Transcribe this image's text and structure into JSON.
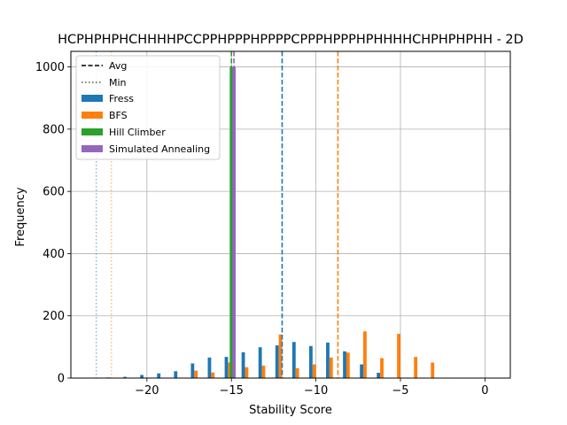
{
  "chart_data": {
    "type": "bar",
    "title": "HCPHPHPHCHHHHPCCPPHPPPHPPPPCPPPHPPPHPHHHHCHPHPHPHH - 2D",
    "xlabel": "Stability Score",
    "ylabel": "Frequency",
    "xlim": [
      -24.5,
      1.5
    ],
    "ylim": [
      0,
      1050
    ],
    "xticks": [
      -20,
      -15,
      -10,
      -5,
      0
    ],
    "xtick_labels": [
      "−20",
      "−15",
      "−10",
      "−5",
      "0"
    ],
    "yticks": [
      0,
      200,
      400,
      600,
      800,
      1000
    ],
    "grid": true,
    "legend_position": "top-left",
    "series": [
      {
        "name": "Fress",
        "color": "#1f77b4",
        "avg": -12,
        "min": -23,
        "bars": [
          {
            "x": -22.3,
            "y": 2
          },
          {
            "x": -21.3,
            "y": 4
          },
          {
            "x": -20.3,
            "y": 10
          },
          {
            "x": -19.3,
            "y": 15
          },
          {
            "x": -18.3,
            "y": 22
          },
          {
            "x": -17.3,
            "y": 47
          },
          {
            "x": -16.3,
            "y": 66
          },
          {
            "x": -15.3,
            "y": 68
          },
          {
            "x": -14.3,
            "y": 83
          },
          {
            "x": -13.3,
            "y": 99
          },
          {
            "x": -12.3,
            "y": 105
          },
          {
            "x": -11.3,
            "y": 116
          },
          {
            "x": -10.3,
            "y": 103
          },
          {
            "x": -9.3,
            "y": 114
          },
          {
            "x": -8.3,
            "y": 86
          },
          {
            "x": -7.3,
            "y": 44
          },
          {
            "x": -6.3,
            "y": 17
          }
        ]
      },
      {
        "name": "BFS",
        "color": "#ff7f0e",
        "avg": -8.7,
        "min": -22.1,
        "bars": [
          {
            "x": -17.1,
            "y": 24
          },
          {
            "x": -16.1,
            "y": 18
          },
          {
            "x": -15.1,
            "y": 50
          },
          {
            "x": -14.1,
            "y": 35
          },
          {
            "x": -13.1,
            "y": 40
          },
          {
            "x": -12.1,
            "y": 140
          },
          {
            "x": -11.1,
            "y": 32
          },
          {
            "x": -10.1,
            "y": 44
          },
          {
            "x": -9.1,
            "y": 66
          },
          {
            "x": -8.1,
            "y": 82
          },
          {
            "x": -7.1,
            "y": 150
          },
          {
            "x": -6.1,
            "y": 64
          },
          {
            "x": -5.1,
            "y": 142
          },
          {
            "x": -4.1,
            "y": 68
          },
          {
            "x": -3.1,
            "y": 50
          }
        ]
      },
      {
        "name": "Hill Climber",
        "color": "#2ca02c",
        "avg": -15,
        "min": -15,
        "bars": [
          {
            "x": -15.0,
            "y": 1000
          }
        ]
      },
      {
        "name": "Simulated Annealing",
        "color": "#9467bd",
        "avg": -14.85,
        "min": -14.85,
        "bars": [
          {
            "x": -14.85,
            "y": 1000
          }
        ]
      }
    ],
    "legend": {
      "avg_label": "Avg",
      "min_label": "Min",
      "entries": [
        "Fress",
        "BFS",
        "Hill Climber",
        "Simulated Annealing"
      ]
    }
  }
}
